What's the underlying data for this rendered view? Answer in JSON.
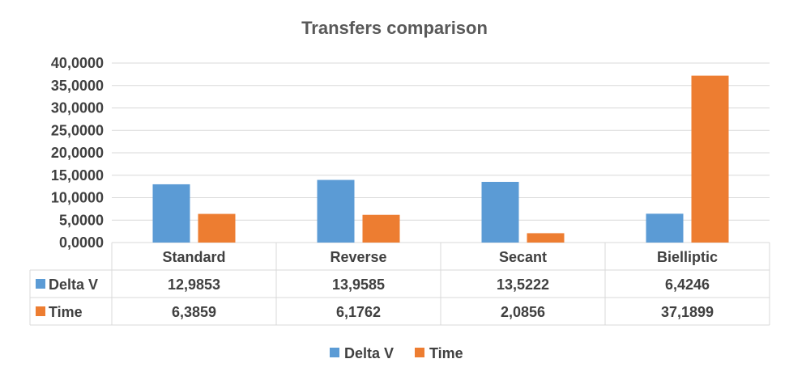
{
  "chart_data": {
    "type": "bar",
    "title": "Transfers comparison",
    "categories": [
      "Standard",
      "Reverse",
      "Secant",
      "Bielliptic"
    ],
    "series": [
      {
        "name": "Delta V",
        "color": "#5B9BD5",
        "values": [
          12.9853,
          13.9585,
          13.5222,
          6.4246
        ],
        "labels": [
          "12,9853",
          "13,9585",
          "13,5222",
          "6,4246"
        ]
      },
      {
        "name": "Time",
        "color": "#ED7D31",
        "values": [
          6.3859,
          6.1762,
          2.0856,
          37.1899
        ],
        "labels": [
          "6,3859",
          "6,1762",
          "2,0856",
          "37,1899"
        ]
      }
    ],
    "ylim": [
      0,
      40
    ],
    "yticks": [
      0,
      5,
      10,
      15,
      20,
      25,
      30,
      35,
      40
    ],
    "ytick_labels": [
      "0,0000",
      "5,0000",
      "10,0000",
      "15,0000",
      "20,0000",
      "25,0000",
      "30,0000",
      "35,0000",
      "40,0000"
    ],
    "grid": true,
    "legend_position": "bottom",
    "data_table": true,
    "xlabel": "",
    "ylabel": ""
  }
}
